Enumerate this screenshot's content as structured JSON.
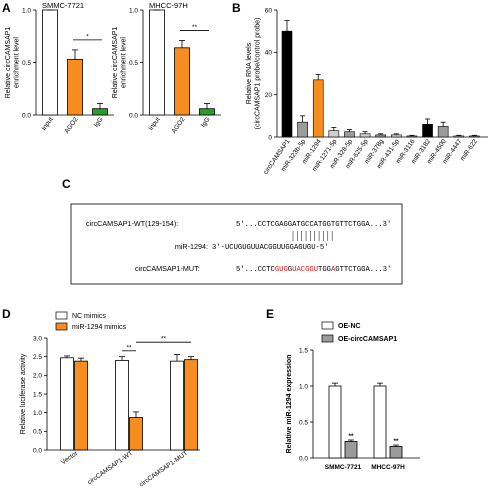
{
  "colors": {
    "white_bar": "#ffffff",
    "orange": "#f68d1e",
    "green": "#2e9a2e",
    "gray": "#9b9b9b",
    "black": "#000000",
    "red": "#e0191b",
    "light_gray": "#cfcfcf"
  },
  "panels": {
    "A": "A",
    "B": "B",
    "C": "C",
    "D": "D",
    "E": "E"
  },
  "chart_data": [
    {
      "id": "A1",
      "type": "bar",
      "title": "SMMC-7721",
      "ylabel": "Relative circCAMSAP1 enrichment level",
      "categories": [
        "Input",
        "AGO2",
        "IgG"
      ],
      "values": [
        1.0,
        0.53,
        0.06
      ],
      "errors": [
        0,
        0.09,
        0.05
      ],
      "colors": [
        "#ffffff",
        "#f68d1e",
        "#2e9a2e"
      ],
      "ylim": [
        0,
        1
      ],
      "yticks": [
        "0.0",
        "0.5",
        "1.0"
      ],
      "sig": [
        {
          "from": 1,
          "to": 2,
          "label": "*"
        }
      ]
    },
    {
      "id": "A2",
      "type": "bar",
      "title": "MHCC-97H",
      "ylabel": "Relative circCAMSAP1 enrichment level",
      "categories": [
        "Input",
        "AGO2",
        "IgG"
      ],
      "values": [
        1.0,
        0.64,
        0.06
      ],
      "errors": [
        0,
        0.07,
        0.05
      ],
      "colors": [
        "#ffffff",
        "#f68d1e",
        "#2e9a2e"
      ],
      "ylim": [
        0,
        1
      ],
      "yticks": [
        "0.0",
        "0.5",
        "1.0"
      ],
      "sig": [
        {
          "from": 1,
          "to": 2,
          "label": "**"
        }
      ]
    },
    {
      "id": "B",
      "type": "bar",
      "ylabel": "Relative RNA levels (circCAMSAP1 probe/control probe)",
      "categories": [
        "circCAMSAP1",
        "miR-323b-5p",
        "miR-1294",
        "miR-1271-5p",
        "miR-328-5p",
        "miR-625-5p",
        "miR-378g",
        "miR-431-5p",
        "miR-3116",
        "miR-3182",
        "miR-4500",
        "miR-4447",
        "miR-622"
      ],
      "values": [
        50,
        7,
        27,
        3,
        2.5,
        1.5,
        1,
        1,
        0.5,
        6,
        5,
        0.5,
        0.5
      ],
      "errors": [
        5,
        3,
        2.5,
        1.5,
        1,
        1,
        0.5,
        0.5,
        0.3,
        2.5,
        2,
        0.3,
        0.3
      ],
      "colors": [
        "#000000",
        "#9b9b9b",
        "#f68d1e",
        "#cfcfcf",
        "#9b9b9b",
        "#cfcfcf",
        "#9b9b9b",
        "#cfcfcf",
        "#9b9b9b",
        "#000000",
        "#9b9b9b",
        "#cfcfcf",
        "#9b9b9b"
      ],
      "ylim": [
        0,
        60
      ],
      "yticks": [
        "0",
        "20",
        "40",
        "60"
      ]
    },
    {
      "id": "D",
      "type": "bar",
      "ylabel": "Relative luciferase activity",
      "categories": [
        "Vector",
        "circCAMSAP1-WT",
        "circCAMSAP1-MUT"
      ],
      "series": [
        {
          "name": "NC mimics",
          "values": [
            2.47,
            2.4,
            2.38
          ],
          "errors": [
            0.05,
            0.1,
            0.18
          ],
          "color": "#ffffff"
        },
        {
          "name": "miR-1294 mimics",
          "values": [
            2.38,
            0.87,
            2.42
          ],
          "errors": [
            0.08,
            0.15,
            0.08
          ],
          "color": "#f68d1e"
        }
      ],
      "ylim": [
        0,
        3
      ],
      "yticks": [
        "0.0",
        "0.5",
        "1.0",
        "1.5",
        "2.0",
        "2.5",
        "3.0"
      ],
      "legend": "top-left",
      "sig": [
        "**",
        "**"
      ]
    },
    {
      "id": "E",
      "type": "bar",
      "ylabel": "Relative miR-1294 expression",
      "categories": [
        "SMMC-7721",
        "MHCC-97H"
      ],
      "series": [
        {
          "name": "OE-NC",
          "values": [
            1.0,
            1.0
          ],
          "errors": [
            0.04,
            0.04
          ],
          "color": "#ffffff"
        },
        {
          "name": "OE-circCAMSAP1",
          "values": [
            0.23,
            0.16
          ],
          "errors": [
            0.02,
            0.02
          ],
          "color": "#9b9b9b"
        }
      ],
      "ylim": [
        0,
        1.5
      ],
      "yticks": [
        "0.0",
        "0.5",
        "1.0",
        "1.5"
      ],
      "legend": "top",
      "sig": [
        "**",
        "**"
      ]
    }
  ],
  "panel_c": {
    "wt_label": "circCAMSAP1-WT(129-154):",
    "wt_seq": "5'...CCTCGAGGATGCCATGGTGTTCTGGA...3'",
    "mir_label": "miR-1294:",
    "mir_seq": "3'-UCUGUGUUACGGUUGGAGUGU-5'",
    "mut_label": "circCAMSAP1-MUT:",
    "mut_parts": [
      {
        "t": "5'...CCTC",
        "red": false
      },
      {
        "t": "G",
        "red": true
      },
      {
        "t": "UG",
        "red": true
      },
      {
        "t": "G",
        "red": false
      },
      {
        "t": "UACGGU",
        "red": true
      },
      {
        "t": "TGG",
        "red": false
      },
      {
        "t": "A",
        "red": true
      },
      {
        "t": "GTTCTGGA...3'",
        "red": false
      }
    ]
  }
}
